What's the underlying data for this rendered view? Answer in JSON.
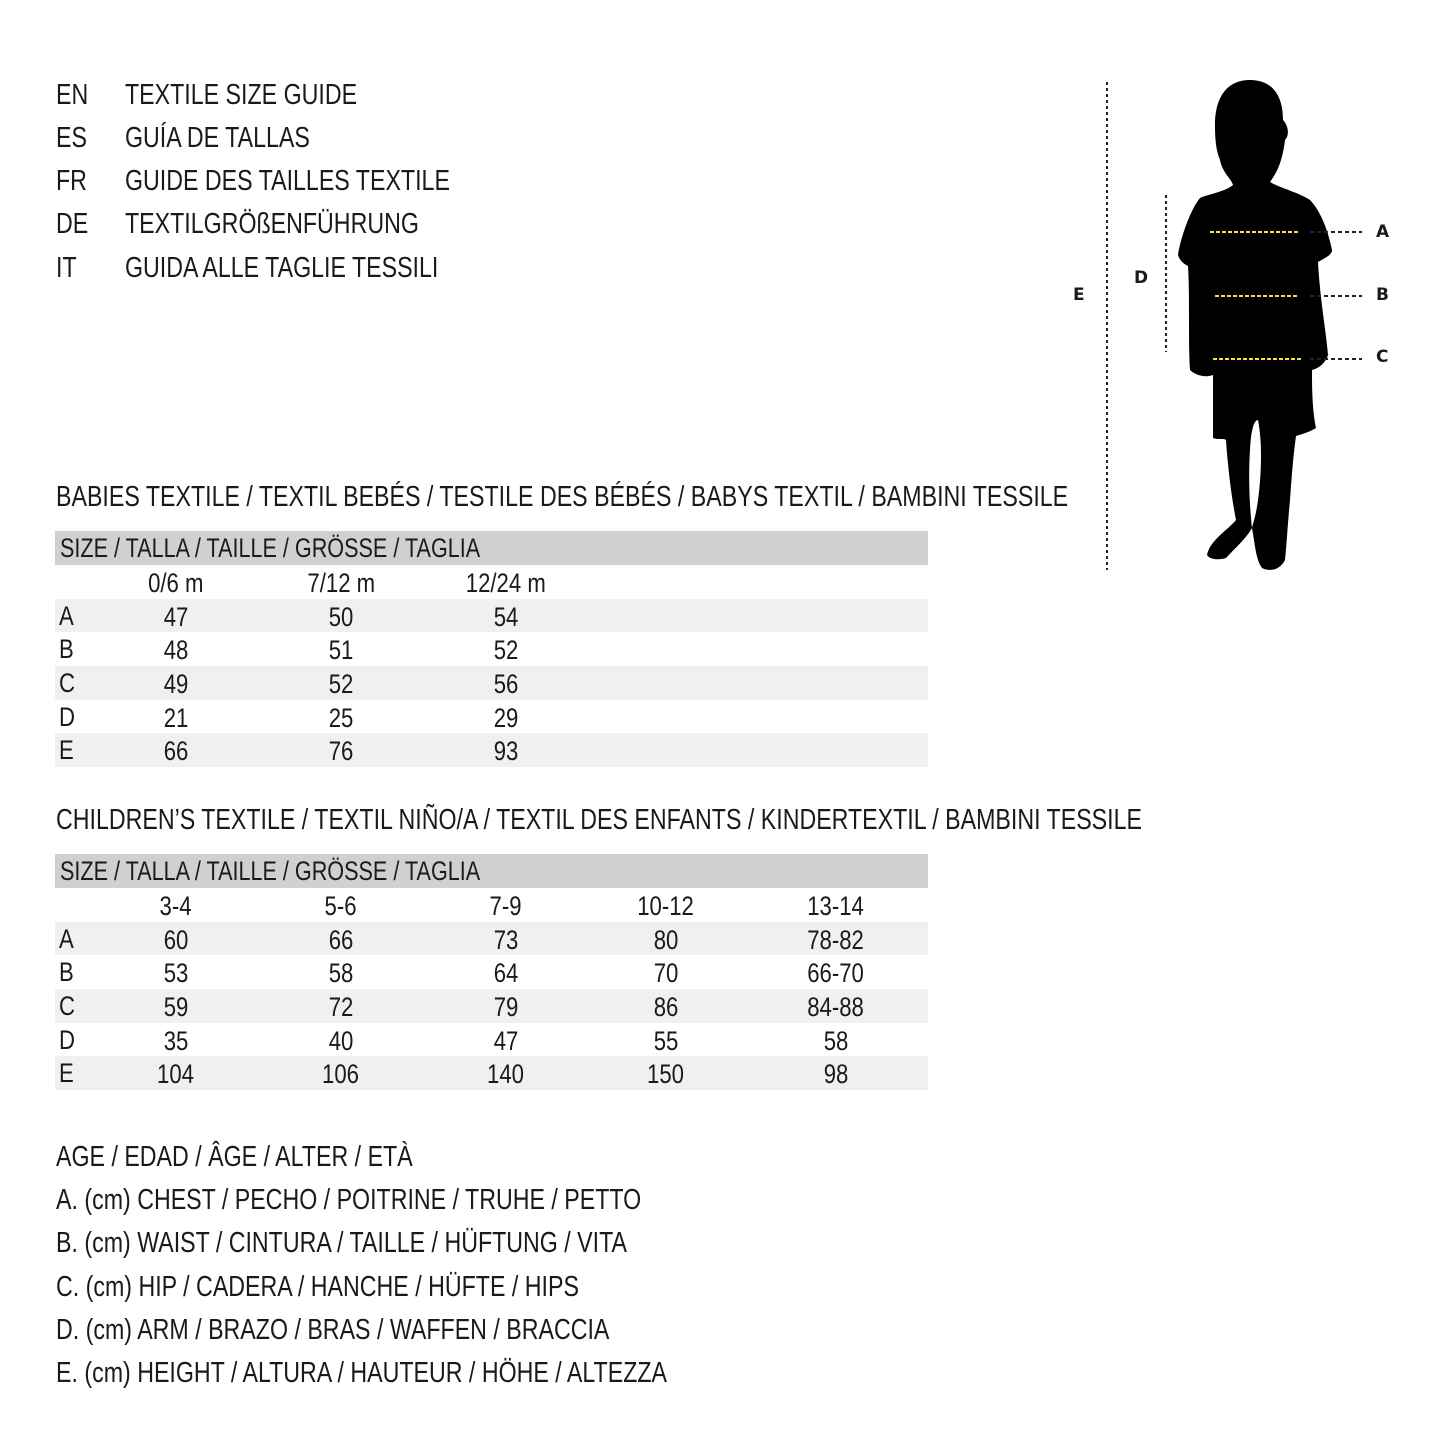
{
  "titles": [
    {
      "code": "EN",
      "text": "TEXTILE SIZE GUIDE"
    },
    {
      "code": "ES",
      "text": "GUÍA DE TALLAS"
    },
    {
      "code": "FR",
      "text": "GUIDE DES TAILLES TEXTILE"
    },
    {
      "code": "DE",
      "text": "TEXTILGRÖßENFÜHRUNG"
    },
    {
      "code": "IT",
      "text": "GUIDA ALLE TAGLIE TESSILI"
    }
  ],
  "figure": {
    "labels": {
      "A": "A",
      "B": "B",
      "C": "C",
      "D": "D",
      "E": "E"
    },
    "measure_line_color": "#f2e24a",
    "silhouette_color": "#000000"
  },
  "babies": {
    "heading": "BABIES TEXTILE / TEXTIL BEBÉS / TESTILE DES BÉBÉS / BABYS TEXTIL / BAMBINI TESSILE",
    "size_header": "SIZE / TALLA / TAILLE / GRÖSSE / TAGLIA",
    "columns": [
      "0/6 m",
      "7/12 m",
      "12/24 m"
    ],
    "rows": [
      {
        "label": "A",
        "values": [
          "47",
          "50",
          "54"
        ]
      },
      {
        "label": "B",
        "values": [
          "48",
          "51",
          "52"
        ]
      },
      {
        "label": "C",
        "values": [
          "49",
          "52",
          "56"
        ]
      },
      {
        "label": "D",
        "values": [
          "21",
          "25",
          "29"
        ]
      },
      {
        "label": "E",
        "values": [
          "66",
          "76",
          "93"
        ]
      }
    ]
  },
  "children": {
    "heading": "CHILDREN’S TEXTILE / TEXTIL NIÑO/A / TEXTIL DES ENFANTS / KINDERTEXTIL / BAMBINI TESSILE",
    "size_header": "SIZE / TALLA / TAILLE / GRÖSSE / TAGLIA",
    "columns": [
      "3-4",
      "5-6",
      "7-9",
      "10-12",
      "13-14"
    ],
    "rows": [
      {
        "label": "A",
        "values": [
          "60",
          "66",
          "73",
          "80",
          "78-82"
        ]
      },
      {
        "label": "B",
        "values": [
          "53",
          "58",
          "64",
          "70",
          "66-70"
        ]
      },
      {
        "label": "C",
        "values": [
          "59",
          "72",
          "79",
          "86",
          "84-88"
        ]
      },
      {
        "label": "D",
        "values": [
          "35",
          "40",
          "47",
          "55",
          "58"
        ]
      },
      {
        "label": "E",
        "values": [
          "104",
          "106",
          "140",
          "150",
          "98"
        ]
      }
    ]
  },
  "legend": [
    "AGE / EDAD / ÂGE / ALTER / ETÀ",
    "A. (cm) CHEST / PECHO / POITRINE / TRUHE / PETTO",
    "B. (cm) WAIST / CINTURA / TAILLE / HÜFTUNG / VITA",
    "C. (cm) HIP / CADERA / HANCHE / HÜFTE / HIPS",
    "D. (cm) ARM / BRAZO / BRAS / WAFFEN / BRACCIA",
    "E. (cm) HEIGHT / ALTURA / HAUTEUR / HÖHE / ALTEZZA"
  ],
  "colors": {
    "header_bg": "#d0d0d0",
    "alt_row_bg": "#f0f0f0"
  }
}
